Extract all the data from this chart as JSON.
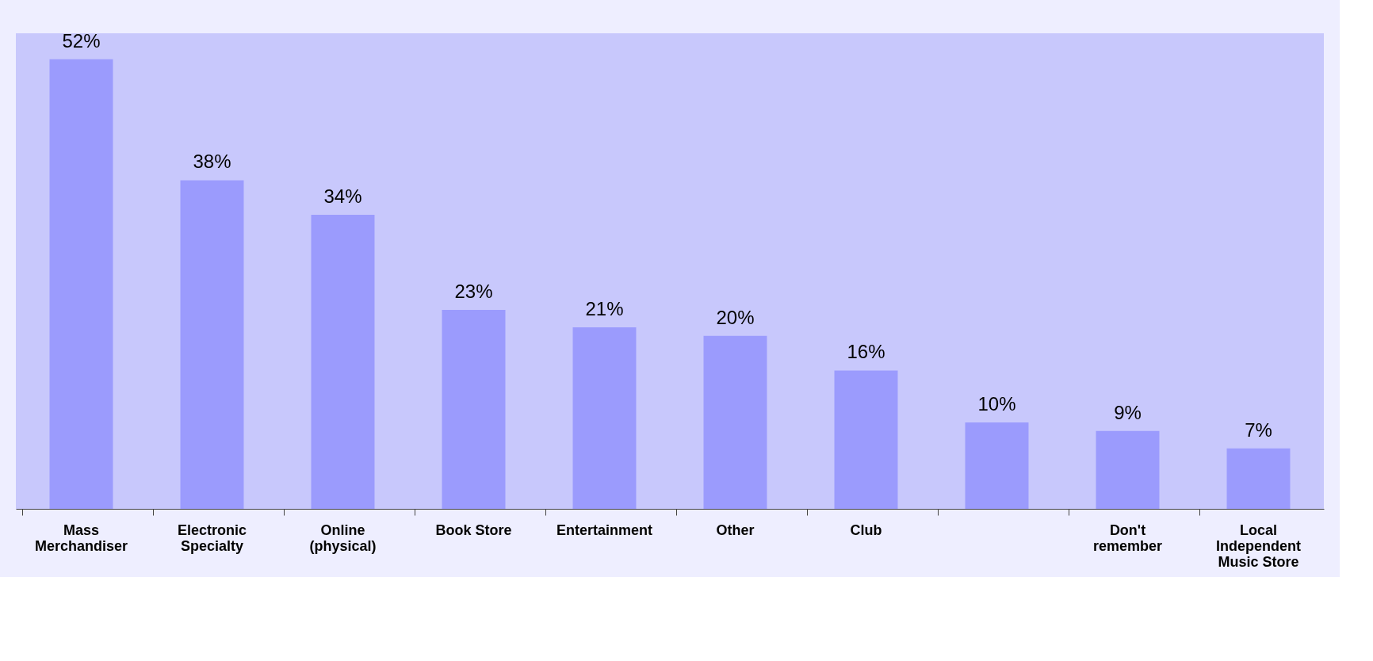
{
  "chart_data": {
    "type": "bar",
    "categories": [
      "Mass\nMerchandiser",
      "Electronic\nSpecialty",
      "Online\n(physical)",
      "Book Store",
      "Entertainment",
      "Other",
      "Club",
      null,
      "Don't\nremember",
      "Local\nIndependent\nMusic Store"
    ],
    "values": [
      52,
      38,
      34,
      23,
      21,
      20,
      16,
      10,
      9,
      7
    ],
    "value_labels": [
      "52%",
      "38%",
      "34%",
      "23%",
      "21%",
      "20%",
      "16%",
      "10%",
      "9%",
      "7%"
    ],
    "color": "#9b9bfd",
    "grid": false
  }
}
